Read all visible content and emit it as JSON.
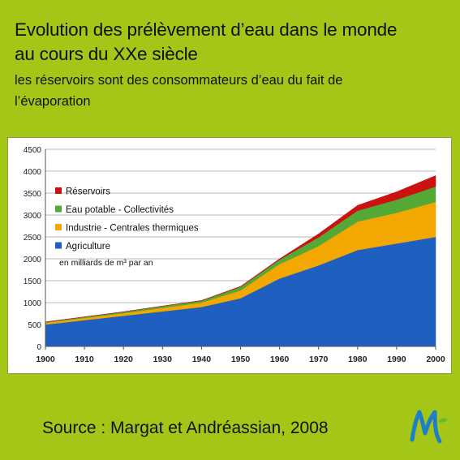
{
  "header": {
    "title_line1": "Evolution des prélèvement d’eau dans le monde",
    "title_line2": "au cours du XXe siècle",
    "subtitle_line1": "les réservoirs sont des consommateurs d’eau du fait de",
    "subtitle_line2": "l’évaporation"
  },
  "footer": {
    "source": "Source : Margat et Andréassian, 2008"
  },
  "colors": {
    "agriculture": "#1f5fbf",
    "industrie": "#f2a800",
    "eau_potable": "#53a836",
    "reservoirs": "#cc1111",
    "grid": "#b8b8b8",
    "background": "#a4c617"
  },
  "chart_data": {
    "type": "area",
    "stacked": true,
    "x": [
      1900,
      1910,
      1920,
      1930,
      1940,
      1950,
      1960,
      1970,
      1980,
      1990,
      2000
    ],
    "xlim": [
      1900,
      2000
    ],
    "ylim": [
      0,
      4500
    ],
    "yticks": [
      0,
      500,
      1000,
      1500,
      2000,
      2500,
      3000,
      3500,
      4000,
      4500
    ],
    "grid": true,
    "legend_position": "upper-left",
    "unit_note": "en milliards de m³ par an",
    "series": [
      {
        "name": "Agriculture",
        "color": "#1f5fbf",
        "values": [
          500,
          600,
          700,
          800,
          900,
          1100,
          1550,
          1850,
          2200,
          2350,
          2500
        ]
      },
      {
        "name": "Industrie - Centrales thermiques",
        "color": "#f2a800",
        "values": [
          40,
          50,
          60,
          80,
          100,
          180,
          330,
          440,
          650,
          700,
          800
        ]
      },
      {
        "name": "Eau potable - Collectivités",
        "color": "#53a836",
        "values": [
          20,
          25,
          30,
          40,
          45,
          80,
          100,
          200,
          250,
          300,
          350
        ]
      },
      {
        "name": "Réservoirs",
        "color": "#cc1111",
        "values": [
          0,
          0,
          0,
          0,
          5,
          10,
          20,
          80,
          120,
          180,
          250
        ]
      }
    ],
    "legend_order": [
      "Réservoirs",
      "Eau potable - Collectivités",
      "Industrie - Centrales thermiques",
      "Agriculture"
    ]
  }
}
